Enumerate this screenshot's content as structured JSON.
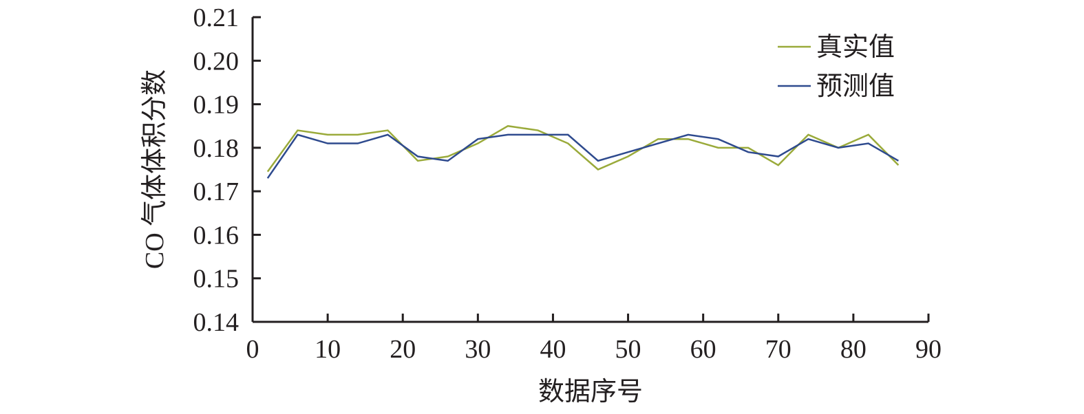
{
  "chart_data": {
    "type": "line",
    "title": "",
    "xlabel": "数据序号",
    "ylabel": "CO 气体体积分数",
    "xlim": [
      0,
      90
    ],
    "ylim": [
      0.14,
      0.21
    ],
    "xticks": [
      "0",
      "10",
      "20",
      "30",
      "40",
      "50",
      "60",
      "70",
      "80",
      "90"
    ],
    "yticks": [
      "0.14",
      "0.15",
      "0.16",
      "0.17",
      "0.18",
      "0.19",
      "0.20",
      "0.21"
    ],
    "grid": false,
    "legend_position": "top-right",
    "x": [
      2,
      6,
      10,
      14,
      18,
      22,
      26,
      30,
      34,
      38,
      42,
      46,
      50,
      54,
      58,
      62,
      66,
      70,
      74,
      78,
      82,
      86
    ],
    "series": [
      {
        "name": "真实值",
        "color": "#9aaa3a",
        "values": [
          0.1745,
          0.184,
          0.183,
          0.183,
          0.184,
          0.177,
          0.178,
          0.181,
          0.185,
          0.184,
          0.181,
          0.175,
          0.178,
          0.182,
          0.182,
          0.18,
          0.18,
          0.176,
          0.183,
          0.18,
          0.183,
          0.176
        ]
      },
      {
        "name": "预测值",
        "color": "#2e4a8e",
        "values": [
          0.173,
          0.183,
          0.181,
          0.181,
          0.183,
          0.178,
          0.177,
          0.182,
          0.183,
          0.183,
          0.183,
          0.177,
          0.179,
          0.181,
          0.183,
          0.182,
          0.179,
          0.178,
          0.182,
          0.18,
          0.181,
          0.177
        ]
      }
    ]
  }
}
